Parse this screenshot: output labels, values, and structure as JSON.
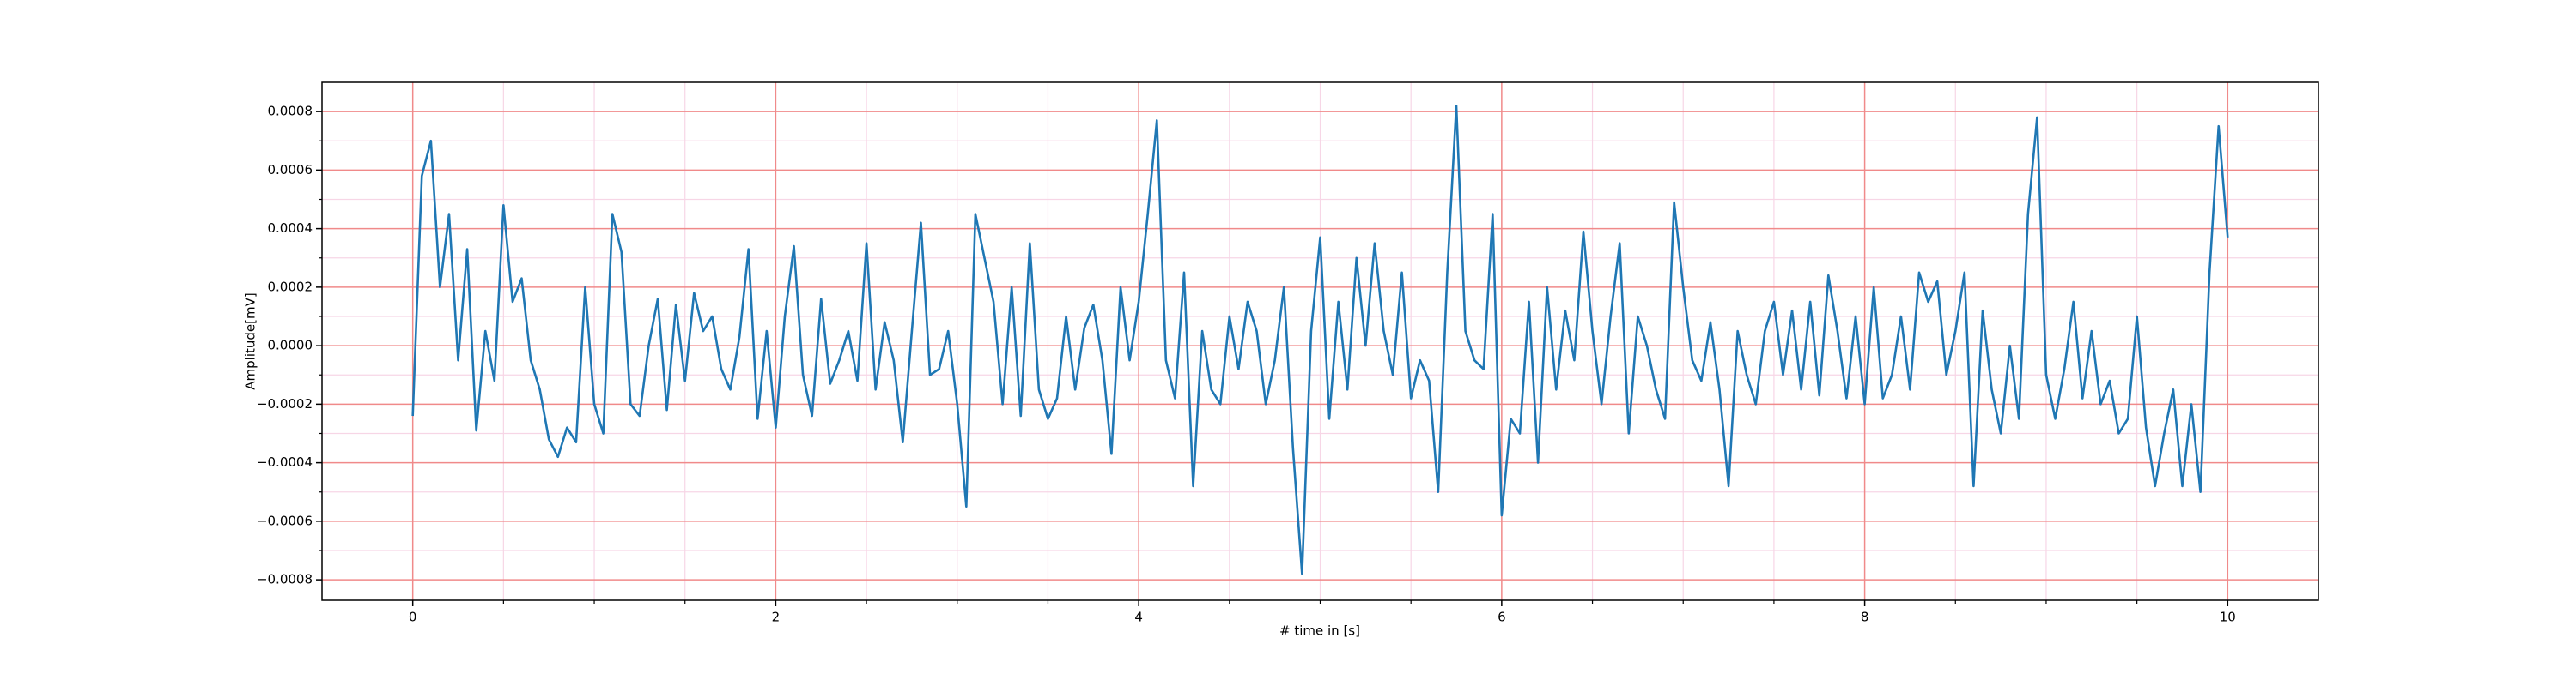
{
  "chart_data": {
    "type": "line",
    "xlabel": "# time in [s]",
    "ylabel": "Amplitude[mV]",
    "color": "#1f77b4",
    "grid": {
      "major": "#f08a8a",
      "minor": "#f7d6e6"
    },
    "xlim": [
      -0.5,
      10.5
    ],
    "xticks": [
      0,
      2,
      4,
      6,
      8,
      10
    ],
    "xminorticks": [
      0.5,
      1,
      1.5,
      2.5,
      3,
      3.5,
      4.5,
      5,
      5.5,
      6.5,
      7,
      7.5,
      8.5,
      9,
      9.5
    ],
    "ylim": [
      -0.00087,
      0.0009
    ],
    "yticks": [
      {
        "value": -0.0008,
        "label": "−0.0008"
      },
      {
        "value": -0.0006,
        "label": "−0.0006"
      },
      {
        "value": -0.0004,
        "label": "−0.0004"
      },
      {
        "value": -0.0002,
        "label": "−0.0002"
      },
      {
        "value": 0,
        "label": "0.0000"
      },
      {
        "value": 0.0002,
        "label": "0.0002"
      },
      {
        "value": 0.0004,
        "label": "0.0004"
      },
      {
        "value": 0.0006,
        "label": "0.0006"
      },
      {
        "value": 0.0008,
        "label": "0.0008"
      }
    ],
    "yminorticks": [
      -0.0007,
      -0.0005,
      -0.0003,
      -0.0001,
      0.0001,
      0.0003,
      0.0005,
      0.0007
    ],
    "x": [
      0,
      0.05,
      0.1,
      0.15,
      0.2,
      0.25,
      0.3,
      0.35,
      0.4,
      0.45,
      0.5,
      0.55,
      0.6,
      0.65,
      0.7,
      0.75,
      0.8,
      0.85,
      0.9,
      0.95,
      1,
      1.05,
      1.1,
      1.15,
      1.2,
      1.25,
      1.3,
      1.35,
      1.4,
      1.45,
      1.5,
      1.55,
      1.6,
      1.65,
      1.7,
      1.75,
      1.8,
      1.85,
      1.9,
      1.95,
      2,
      2.05,
      2.1,
      2.15,
      2.2,
      2.25,
      2.3,
      2.35,
      2.4,
      2.45,
      2.5,
      2.55,
      2.6,
      2.65,
      2.7,
      2.75,
      2.8,
      2.85,
      2.9,
      2.95,
      3,
      3.05,
      3.1,
      3.15,
      3.2,
      3.25,
      3.3,
      3.35,
      3.4,
      3.45,
      3.5,
      3.55,
      3.6,
      3.65,
      3.7,
      3.75,
      3.8,
      3.85,
      3.9,
      3.95,
      4,
      4.05,
      4.1,
      4.15,
      4.2,
      4.25,
      4.3,
      4.35,
      4.4,
      4.45,
      4.5,
      4.55,
      4.6,
      4.65,
      4.7,
      4.75,
      4.8,
      4.85,
      4.9,
      4.95,
      5,
      5.05,
      5.1,
      5.15,
      5.2,
      5.25,
      5.3,
      5.35,
      5.4,
      5.45,
      5.5,
      5.55,
      5.6,
      5.65,
      5.7,
      5.75,
      5.8,
      5.85,
      5.9,
      5.95,
      6,
      6.05,
      6.1,
      6.15,
      6.2,
      6.25,
      6.3,
      6.35,
      6.4,
      6.45,
      6.5,
      6.55,
      6.6,
      6.65,
      6.7,
      6.75,
      6.8,
      6.85,
      6.9,
      6.95,
      7,
      7.05,
      7.1,
      7.15,
      7.2,
      7.25,
      7.3,
      7.35,
      7.4,
      7.45,
      7.5,
      7.55,
      7.6,
      7.65,
      7.7,
      7.75,
      7.8,
      7.85,
      7.9,
      7.95,
      8,
      8.05,
      8.1,
      8.15,
      8.2,
      8.25,
      8.3,
      8.35,
      8.4,
      8.45,
      8.5,
      8.55,
      8.6,
      8.65,
      8.7,
      8.75,
      8.8,
      8.85,
      8.9,
      8.95,
      9,
      9.05,
      9.1,
      9.15,
      9.2,
      9.25,
      9.3,
      9.35,
      9.4,
      9.45,
      9.5,
      9.55,
      9.6,
      9.65,
      9.7,
      9.75,
      9.8,
      9.85,
      9.9,
      9.95,
      10
    ],
    "values": [
      -0.00024,
      0.00058,
      0.0007,
      0.0002,
      0.00045,
      -5e-05,
      0.00033,
      -0.00029,
      5e-05,
      -0.00012,
      0.00048,
      0.00015,
      0.00023,
      -5e-05,
      -0.00015,
      -0.00032,
      -0.00038,
      -0.00028,
      -0.00033,
      0.0002,
      -0.0002,
      -0.0003,
      0.00045,
      0.00032,
      -0.0002,
      -0.00024,
      0,
      0.00016,
      -0.00022,
      0.00014,
      -0.00012,
      0.00018,
      5e-05,
      0.0001,
      -8e-05,
      -0.00015,
      3e-05,
      0.00033,
      -0.00025,
      5e-05,
      -0.00028,
      0.0001,
      0.00034,
      -0.0001,
      -0.00024,
      0.00016,
      -0.00013,
      -5e-05,
      5e-05,
      -0.00012,
      0.00035,
      -0.00015,
      8e-05,
      -5e-05,
      -0.00033,
      5e-05,
      0.00042,
      -0.0001,
      -8e-05,
      5e-05,
      -0.0002,
      -0.00055,
      0.00045,
      0.0003,
      0.00015,
      -0.0002,
      0.0002,
      -0.00024,
      0.00035,
      -0.00015,
      -0.00025,
      -0.00018,
      0.0001,
      -0.00015,
      6e-05,
      0.00014,
      -5e-05,
      -0.00037,
      0.0002,
      -5e-05,
      0.00015,
      0.00045,
      0.00077,
      -5e-05,
      -0.00018,
      0.00025,
      -0.00048,
      5e-05,
      -0.00015,
      -0.0002,
      0.0001,
      -8e-05,
      0.00015,
      5e-05,
      -0.0002,
      -5e-05,
      0.0002,
      -0.00035,
      -0.00078,
      5e-05,
      0.00037,
      -0.00025,
      0.00015,
      -0.00015,
      0.0003,
      0,
      0.00035,
      5e-05,
      -0.0001,
      0.00025,
      -0.00018,
      -5e-05,
      -0.00012,
      -0.0005,
      0.00025,
      0.00082,
      5e-05,
      -5e-05,
      -8e-05,
      0.00045,
      -0.00058,
      -0.00025,
      -0.0003,
      0.00015,
      -0.0004,
      0.0002,
      -0.00015,
      0.00012,
      -5e-05,
      0.00039,
      5e-05,
      -0.0002,
      0.0001,
      0.00035,
      -0.0003,
      0.0001,
      0,
      -0.00015,
      -0.00025,
      0.00049,
      0.0002,
      -5e-05,
      -0.00012,
      8e-05,
      -0.00015,
      -0.00048,
      5e-05,
      -0.0001,
      -0.0002,
      5e-05,
      0.00015,
      -0.0001,
      0.00012,
      -0.00015,
      0.00015,
      -0.00017,
      0.00024,
      5e-05,
      -0.00018,
      0.0001,
      -0.0002,
      0.0002,
      -0.00018,
      -0.0001,
      0.0001,
      -0.00015,
      0.00025,
      0.00015,
      0.00022,
      -0.0001,
      5e-05,
      0.00025,
      -0.00048,
      0.00012,
      -0.00015,
      -0.0003,
      0,
      -0.00025,
      0.00045,
      0.00078,
      -0.0001,
      -0.00025,
      -8e-05,
      0.00015,
      -0.00018,
      5e-05,
      -0.0002,
      -0.00012,
      -0.0003,
      -0.00025,
      0.0001,
      -0.00028,
      -0.00048,
      -0.0003,
      -0.00015,
      -0.00048,
      -0.0002,
      -0.0005,
      0.00025,
      0.00075,
      0.00037
    ]
  }
}
